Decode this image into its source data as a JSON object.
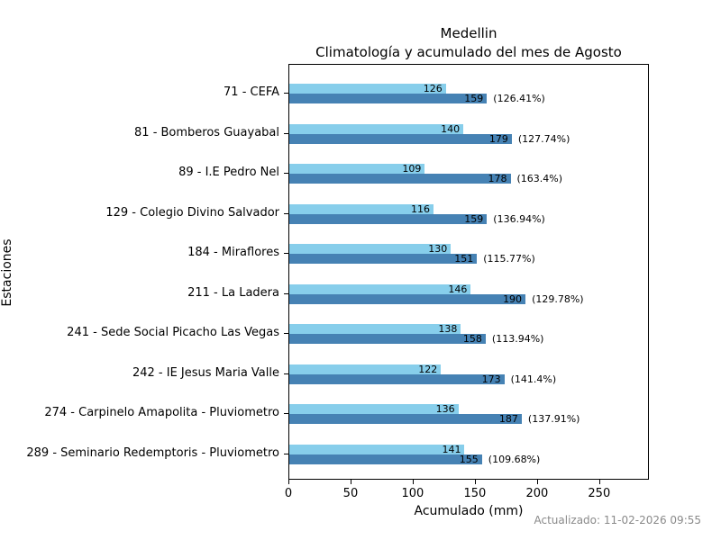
{
  "title_lines": [
    "Medellin",
    "Climatología y acumulado del mes de Agosto"
  ],
  "footer": {
    "updated": "Actualizado: 11-02-2026 09:55"
  },
  "chart_data": {
    "type": "bar",
    "orientation": "horizontal",
    "title": "Medellin\nClimatología y acumulado del mes de Agosto",
    "xlabel": "Acumulado (mm)",
    "ylabel": "Estaciones",
    "xlim": [
      0,
      290
    ],
    "xticks": [
      0,
      50,
      100,
      150,
      200,
      250
    ],
    "grid": false,
    "legend": "none",
    "categories": [
      "71 - CEFA",
      "81 - Bomberos Guayabal",
      "89 - I.E Pedro Nel",
      "129 - Colegio Divino Salvador",
      "184 - Miraflores",
      "211 - La Ladera",
      "241 - Sede Social Picacho Las Vegas",
      "242 - IE Jesus Maria Valle",
      "274 - Carpinelo Amapolita - Pluviometro",
      "289 - Seminario Redemptoris - Pluviometro"
    ],
    "series": [
      {
        "name": "Climatología",
        "color": "#87ceeb",
        "values": [
          126,
          140,
          109,
          116,
          130,
          146,
          138,
          122,
          136,
          141
        ]
      },
      {
        "name": "Acumulado",
        "color": "#4682b4",
        "values": [
          159,
          179,
          178,
          159,
          151,
          190,
          158,
          173,
          187,
          155
        ],
        "annotations": [
          "(126.41%)",
          "(127.74%)",
          "(163.4%)",
          "(136.94%)",
          "(115.77%)",
          "(129.78%)",
          "(113.94%)",
          "(141.4%)",
          "(137.91%)",
          "(109.68%)"
        ]
      }
    ]
  }
}
